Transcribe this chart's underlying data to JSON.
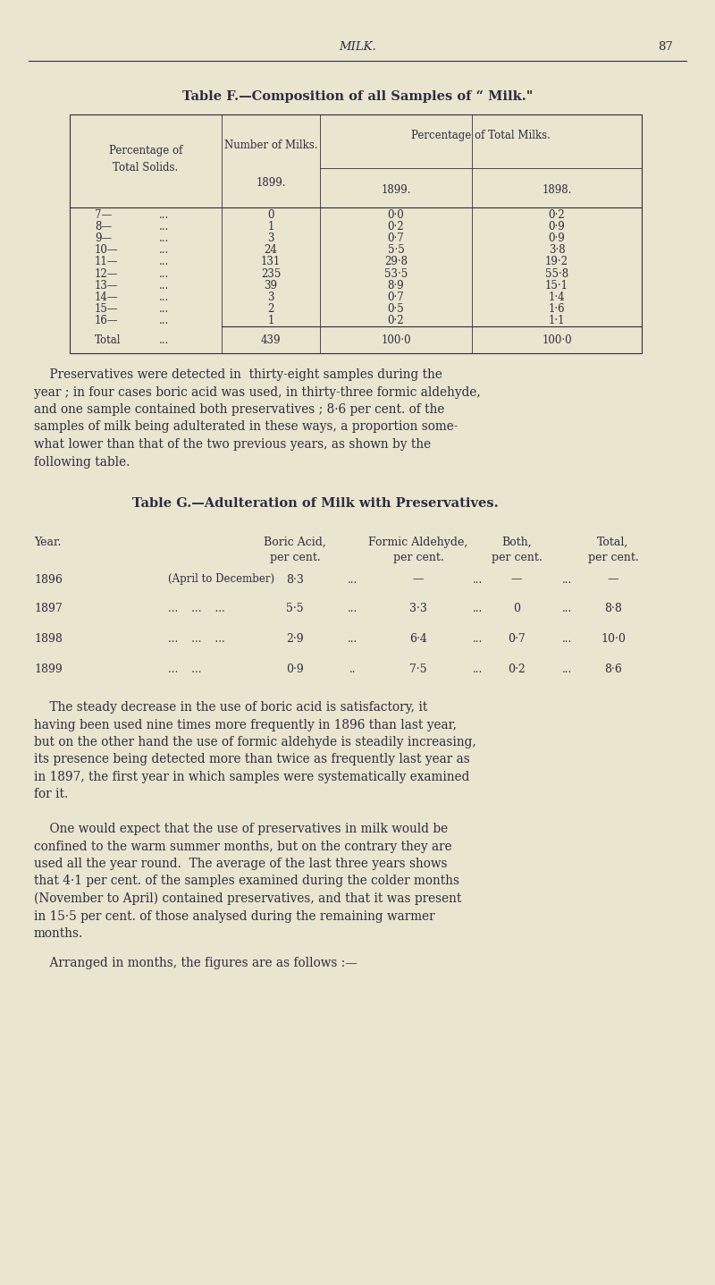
{
  "bg_color": "#EAE5CE",
  "text_color": "#2B2D42",
  "page_header": "MILK.",
  "page_number": "87",
  "table_f_title": "Table F.—Composition of all Samples of “ Milk.\"",
  "table_f_col1": [
    "7—",
    "8—",
    "9—",
    "10—",
    "11—",
    "12—",
    "13—",
    "14—",
    "15—",
    "16—",
    "Total"
  ],
  "table_f_col2": [
    "0",
    "1",
    "3",
    "24",
    "131",
    "235",
    "39",
    "3",
    "2",
    "1",
    "439"
  ],
  "table_f_col3": [
    "0·0",
    "0·2",
    "0·7",
    "5·5",
    "29·8",
    "53·5",
    "8·9",
    "0·7",
    "0·5",
    "0·2",
    "100·0"
  ],
  "table_f_col4": [
    "0·2",
    "0·9",
    "0·9",
    "3·8",
    "19·2",
    "55·8",
    "15·1",
    "1·4",
    "1·6",
    "1·1",
    "100·0"
  ],
  "para1_lines": [
    "    Preservatives were detected in  thirty-eight samples during the",
    "year ; in four cases boric acid was used, in thirty-three formic aldehyde,",
    "and one sample contained both preservatives ; 8·6 per cent. of the",
    "samples of milk being adulterated in these ways, a proportion some-",
    "what lower than that of the two previous years, as shown by the",
    "following table."
  ],
  "table_g_title": "Table G.—Adulteration of Milk with Preservatives.",
  "table_g_rows": [
    [
      "1896",
      "(April to December)",
      "8·3",
      "...",
      "—",
      "...",
      "—",
      "...",
      "—"
    ],
    [
      "1897",
      "...    ...    ...",
      "5·5",
      "...",
      "3·3",
      "...",
      "0",
      "...",
      "8·8"
    ],
    [
      "1898",
      "...    ...    ...",
      "2·9",
      "...",
      "6·4",
      "...",
      "0·7",
      "...",
      "10·0"
    ],
    [
      "1899",
      "...    ...",
      "0·9",
      "..",
      "7·5",
      "...",
      "0·2",
      "...",
      "8·6"
    ]
  ],
  "para2_lines": [
    "    The steady decrease in the use of boric acid is satisfactory, it",
    "having been used nine times more frequently in 1896 than last year,",
    "but on the other hand the use of formic aldehyde is steadily increasing,",
    "its presence being detected more than twice as frequently last year as",
    "in 1897, the first year in which samples were systematically examined",
    "for it."
  ],
  "para3_lines": [
    "    One would expect that the use of preservatives in milk would be",
    "confined to the warm summer months, but on the contrary they are",
    "used all the year round.  The average of the last three years shows",
    "that 4·1 per cent. of the samples examined during the colder months",
    "(November to April) contained preservatives, and that it was present",
    "in 15·5 per cent. of those analysed during the remaining warmer",
    "months."
  ],
  "para4": "    Arranged in months, the figures are as follows :—"
}
